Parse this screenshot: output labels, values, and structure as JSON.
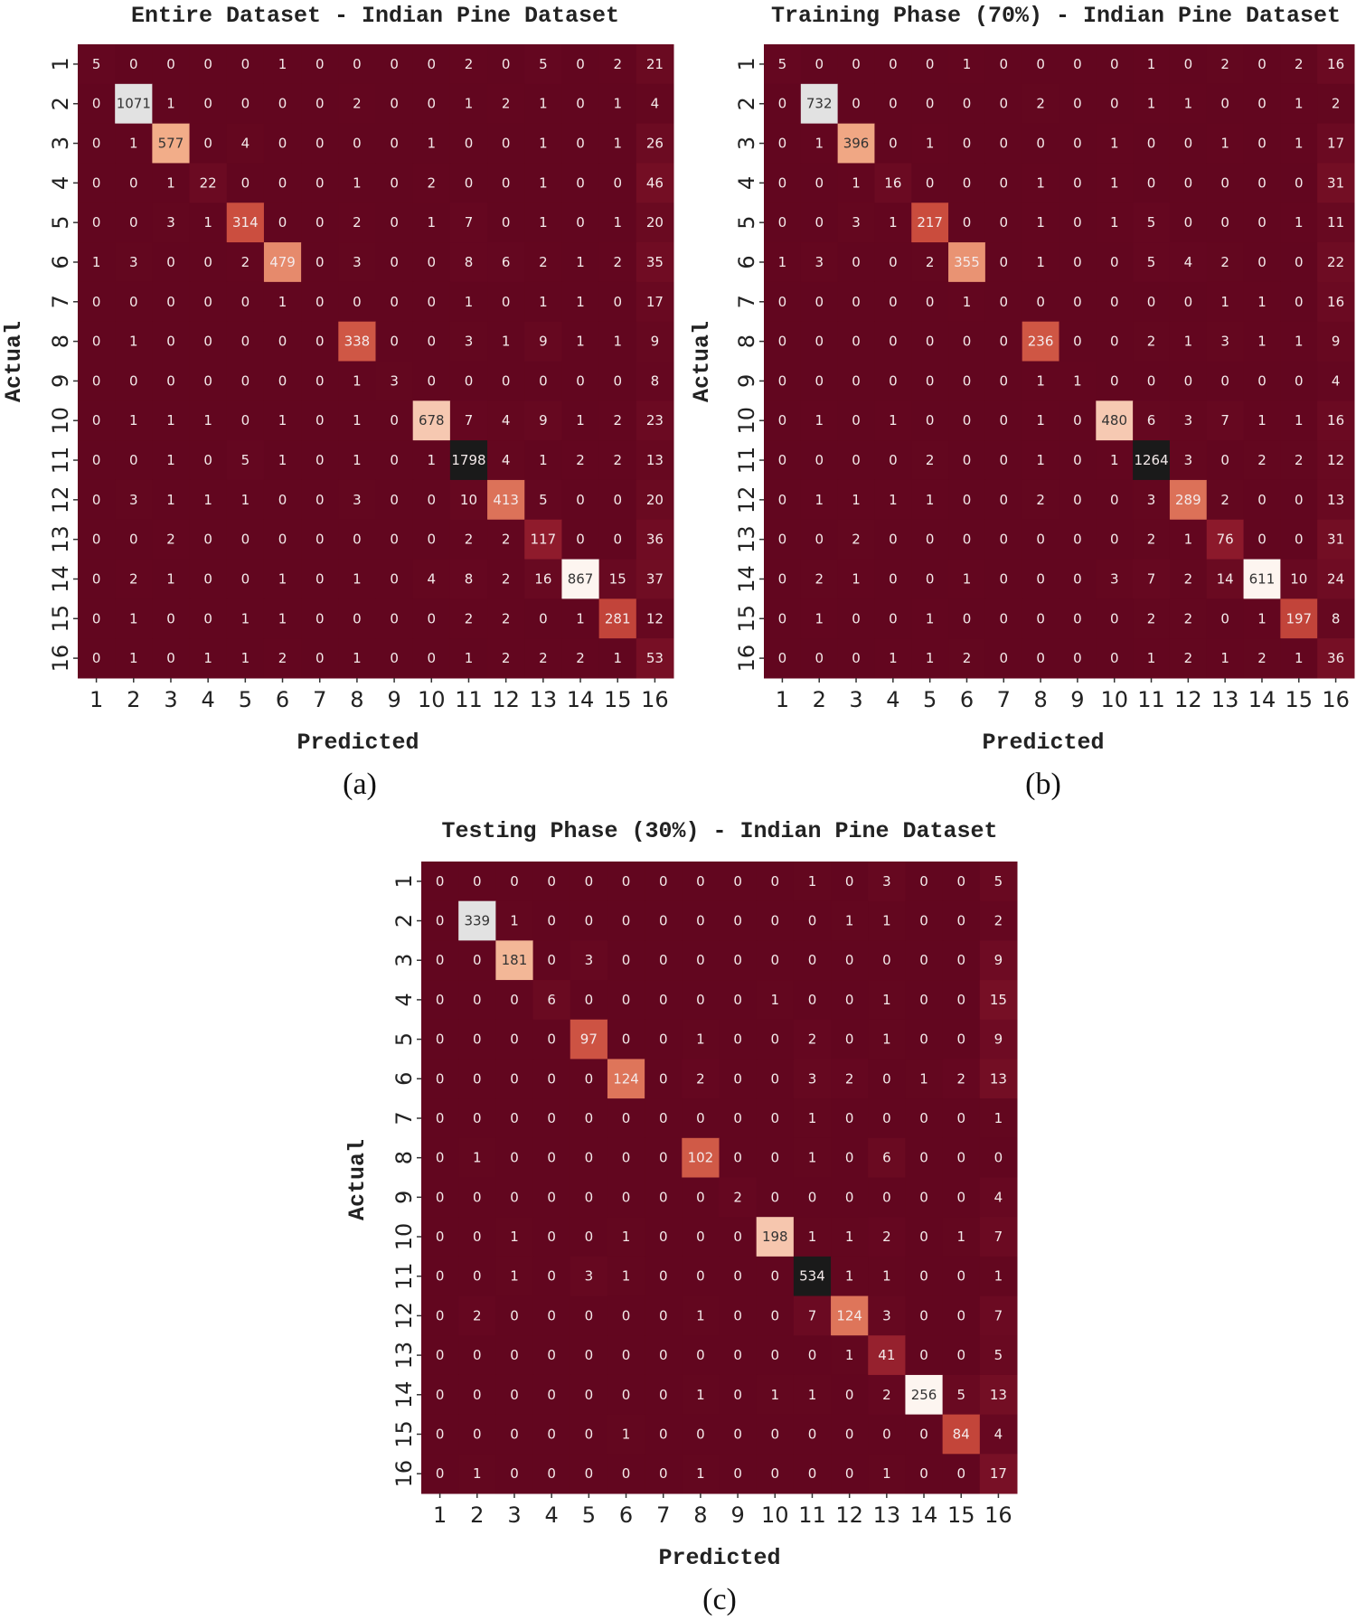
{
  "chart_data": [
    {
      "type": "heatmap",
      "title": "Entire Dataset - Indian Pine Dataset",
      "xlabel": "Predicted",
      "ylabel": "Actual",
      "panel_label": "(a)",
      "x_categories": [
        "1",
        "2",
        "3",
        "4",
        "5",
        "6",
        "7",
        "8",
        "9",
        "10",
        "11",
        "12",
        "13",
        "14",
        "15",
        "16"
      ],
      "y_categories": [
        "1",
        "2",
        "3",
        "4",
        "5",
        "6",
        "7",
        "8",
        "9",
        "10",
        "11",
        "12",
        "13",
        "14",
        "15",
        "16"
      ],
      "values": [
        [
          5,
          0,
          0,
          0,
          0,
          1,
          0,
          0,
          0,
          0,
          2,
          0,
          5,
          0,
          2,
          21
        ],
        [
          0,
          1071,
          1,
          0,
          0,
          0,
          0,
          2,
          0,
          0,
          1,
          2,
          1,
          0,
          1,
          4
        ],
        [
          0,
          1,
          577,
          0,
          4,
          0,
          0,
          0,
          0,
          1,
          0,
          0,
          1,
          0,
          1,
          26
        ],
        [
          0,
          0,
          1,
          22,
          0,
          0,
          0,
          1,
          0,
          2,
          0,
          0,
          1,
          0,
          0,
          46
        ],
        [
          0,
          0,
          3,
          1,
          314,
          0,
          0,
          2,
          0,
          1,
          7,
          0,
          1,
          0,
          1,
          20
        ],
        [
          1,
          3,
          0,
          0,
          2,
          479,
          0,
          3,
          0,
          0,
          8,
          6,
          2,
          1,
          2,
          35
        ],
        [
          0,
          0,
          0,
          0,
          0,
          1,
          0,
          0,
          0,
          0,
          1,
          0,
          1,
          1,
          0,
          17
        ],
        [
          0,
          1,
          0,
          0,
          0,
          0,
          0,
          338,
          0,
          0,
          3,
          1,
          9,
          1,
          1,
          9
        ],
        [
          0,
          0,
          0,
          0,
          0,
          0,
          0,
          1,
          3,
          0,
          0,
          0,
          0,
          0,
          0,
          8
        ],
        [
          0,
          1,
          1,
          1,
          0,
          1,
          0,
          1,
          0,
          678,
          7,
          4,
          9,
          1,
          2,
          23
        ],
        [
          0,
          0,
          1,
          0,
          5,
          1,
          0,
          1,
          0,
          1,
          1798,
          4,
          1,
          2,
          2,
          13
        ],
        [
          0,
          3,
          1,
          1,
          1,
          0,
          0,
          3,
          0,
          0,
          10,
          413,
          5,
          0,
          0,
          20
        ],
        [
          0,
          0,
          2,
          0,
          0,
          0,
          0,
          0,
          0,
          0,
          2,
          2,
          117,
          0,
          0,
          36
        ],
        [
          0,
          2,
          1,
          0,
          0,
          1,
          0,
          1,
          0,
          4,
          8,
          2,
          16,
          867,
          15,
          37
        ],
        [
          0,
          1,
          0,
          0,
          1,
          1,
          0,
          0,
          0,
          0,
          2,
          2,
          0,
          1,
          281,
          12
        ],
        [
          0,
          1,
          0,
          1,
          1,
          2,
          0,
          1,
          0,
          0,
          1,
          2,
          2,
          2,
          1,
          53
        ]
      ]
    },
    {
      "type": "heatmap",
      "title": "Training Phase (70%) - Indian Pine Dataset",
      "xlabel": "Predicted",
      "ylabel": "Actual",
      "panel_label": "(b)",
      "x_categories": [
        "1",
        "2",
        "3",
        "4",
        "5",
        "6",
        "7",
        "8",
        "9",
        "10",
        "11",
        "12",
        "13",
        "14",
        "15",
        "16"
      ],
      "y_categories": [
        "1",
        "2",
        "3",
        "4",
        "5",
        "6",
        "7",
        "8",
        "9",
        "10",
        "11",
        "12",
        "13",
        "14",
        "15",
        "16"
      ],
      "values": [
        [
          5,
          0,
          0,
          0,
          0,
          1,
          0,
          0,
          0,
          0,
          1,
          0,
          2,
          0,
          2,
          16
        ],
        [
          0,
          732,
          0,
          0,
          0,
          0,
          0,
          2,
          0,
          0,
          1,
          1,
          0,
          0,
          1,
          2
        ],
        [
          0,
          1,
          396,
          0,
          1,
          0,
          0,
          0,
          0,
          1,
          0,
          0,
          1,
          0,
          1,
          17
        ],
        [
          0,
          0,
          1,
          16,
          0,
          0,
          0,
          1,
          0,
          1,
          0,
          0,
          0,
          0,
          0,
          31
        ],
        [
          0,
          0,
          3,
          1,
          217,
          0,
          0,
          1,
          0,
          1,
          5,
          0,
          0,
          0,
          1,
          11
        ],
        [
          1,
          3,
          0,
          0,
          2,
          355,
          0,
          1,
          0,
          0,
          5,
          4,
          2,
          0,
          0,
          22
        ],
        [
          0,
          0,
          0,
          0,
          0,
          1,
          0,
          0,
          0,
          0,
          0,
          0,
          1,
          1,
          0,
          16
        ],
        [
          0,
          0,
          0,
          0,
          0,
          0,
          0,
          236,
          0,
          0,
          2,
          1,
          3,
          1,
          1,
          9
        ],
        [
          0,
          0,
          0,
          0,
          0,
          0,
          0,
          1,
          1,
          0,
          0,
          0,
          0,
          0,
          0,
          4
        ],
        [
          0,
          1,
          0,
          1,
          0,
          0,
          0,
          1,
          0,
          480,
          6,
          3,
          7,
          1,
          1,
          16
        ],
        [
          0,
          0,
          0,
          0,
          2,
          0,
          0,
          1,
          0,
          1,
          1264,
          3,
          0,
          2,
          2,
          12
        ],
        [
          0,
          1,
          1,
          1,
          1,
          0,
          0,
          2,
          0,
          0,
          3,
          289,
          2,
          0,
          0,
          13
        ],
        [
          0,
          0,
          2,
          0,
          0,
          0,
          0,
          0,
          0,
          0,
          2,
          1,
          76,
          0,
          0,
          31
        ],
        [
          0,
          2,
          1,
          0,
          0,
          1,
          0,
          0,
          0,
          3,
          7,
          2,
          14,
          611,
          10,
          24
        ],
        [
          0,
          1,
          0,
          0,
          1,
          0,
          0,
          0,
          0,
          0,
          2,
          2,
          0,
          1,
          197,
          8
        ],
        [
          0,
          0,
          0,
          1,
          1,
          2,
          0,
          0,
          0,
          0,
          1,
          2,
          1,
          2,
          1,
          36
        ]
      ]
    },
    {
      "type": "heatmap",
      "title": "Testing Phase (30%) - Indian Pine Dataset",
      "xlabel": "Predicted",
      "ylabel": "Actual",
      "panel_label": "(c)",
      "x_categories": [
        "1",
        "2",
        "3",
        "4",
        "5",
        "6",
        "7",
        "8",
        "9",
        "10",
        "11",
        "12",
        "13",
        "14",
        "15",
        "16"
      ],
      "y_categories": [
        "1",
        "2",
        "3",
        "4",
        "5",
        "6",
        "7",
        "8",
        "9",
        "10",
        "11",
        "12",
        "13",
        "14",
        "15",
        "16"
      ],
      "values": [
        [
          0,
          0,
          0,
          0,
          0,
          0,
          0,
          0,
          0,
          0,
          1,
          0,
          3,
          0,
          0,
          5
        ],
        [
          0,
          339,
          1,
          0,
          0,
          0,
          0,
          0,
          0,
          0,
          0,
          1,
          1,
          0,
          0,
          2
        ],
        [
          0,
          0,
          181,
          0,
          3,
          0,
          0,
          0,
          0,
          0,
          0,
          0,
          0,
          0,
          0,
          9
        ],
        [
          0,
          0,
          0,
          6,
          0,
          0,
          0,
          0,
          0,
          1,
          0,
          0,
          1,
          0,
          0,
          15
        ],
        [
          0,
          0,
          0,
          0,
          97,
          0,
          0,
          1,
          0,
          0,
          2,
          0,
          1,
          0,
          0,
          9
        ],
        [
          0,
          0,
          0,
          0,
          0,
          124,
          0,
          2,
          0,
          0,
          3,
          2,
          0,
          1,
          2,
          13
        ],
        [
          0,
          0,
          0,
          0,
          0,
          0,
          0,
          0,
          0,
          0,
          1,
          0,
          0,
          0,
          0,
          1
        ],
        [
          0,
          1,
          0,
          0,
          0,
          0,
          0,
          102,
          0,
          0,
          1,
          0,
          6,
          0,
          0,
          0
        ],
        [
          0,
          0,
          0,
          0,
          0,
          0,
          0,
          0,
          2,
          0,
          0,
          0,
          0,
          0,
          0,
          4
        ],
        [
          0,
          0,
          1,
          0,
          0,
          1,
          0,
          0,
          0,
          198,
          1,
          1,
          2,
          0,
          1,
          7
        ],
        [
          0,
          0,
          1,
          0,
          3,
          1,
          0,
          0,
          0,
          0,
          534,
          1,
          1,
          0,
          0,
          1
        ],
        [
          0,
          2,
          0,
          0,
          0,
          0,
          0,
          1,
          0,
          0,
          7,
          124,
          3,
          0,
          0,
          7
        ],
        [
          0,
          0,
          0,
          0,
          0,
          0,
          0,
          0,
          0,
          0,
          0,
          1,
          41,
          0,
          0,
          5
        ],
        [
          0,
          0,
          0,
          0,
          0,
          0,
          0,
          1,
          0,
          1,
          1,
          0,
          2,
          256,
          5,
          13
        ],
        [
          0,
          0,
          0,
          0,
          0,
          1,
          0,
          0,
          0,
          0,
          0,
          0,
          0,
          0,
          84,
          4
        ],
        [
          0,
          1,
          0,
          0,
          0,
          0,
          0,
          1,
          0,
          0,
          0,
          0,
          1,
          0,
          0,
          17
        ]
      ]
    }
  ],
  "colors": {
    "low": "#62061f",
    "mid": "#c94a3c",
    "high": "#fdf5f0",
    "max": "#1a1a1a"
  }
}
